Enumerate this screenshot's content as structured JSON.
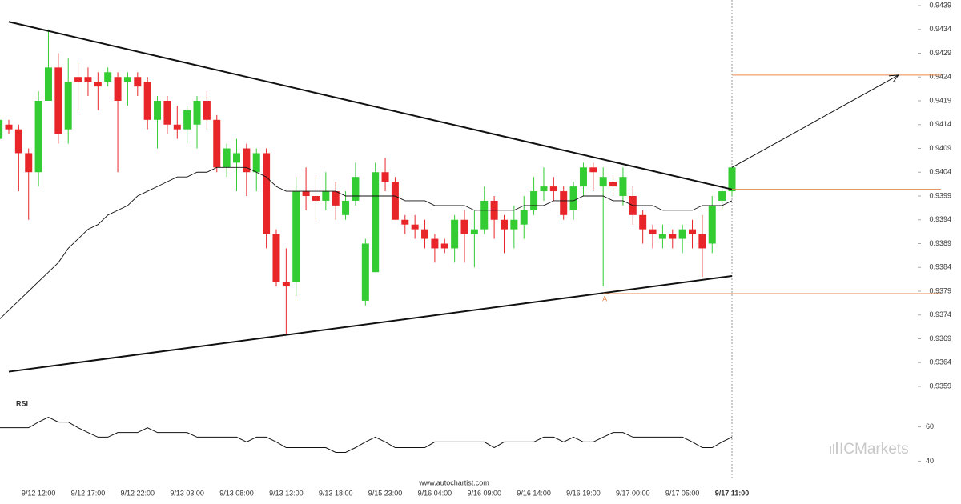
{
  "chart_data": {
    "type": "candlestick",
    "categories": [
      null,
      null,
      null,
      null,
      "9/12 12:00",
      null,
      null,
      null,
      null,
      "9/12 17:00",
      null,
      null,
      null,
      null,
      "9/12 22:00",
      null,
      null,
      null,
      null,
      "9/13 03:00",
      null,
      null,
      null,
      null,
      "9/13 08:00",
      null,
      null,
      null,
      null,
      "9/13 13:00",
      null,
      null,
      null,
      null,
      "9/13 18:00",
      null,
      null,
      null,
      null,
      "9/15 23:00",
      null,
      null,
      null,
      null,
      "9/16 04:00",
      null,
      null,
      null,
      null,
      "9/16 09:00",
      null,
      null,
      null,
      null,
      "9/16 14:00",
      null,
      null,
      null,
      null,
      "9/16 19:00",
      null,
      null,
      null,
      null,
      "9/17 00:00",
      null,
      null,
      null,
      null,
      "9/17 05:00",
      null,
      null,
      null,
      null,
      "9/17 11:00"
    ],
    "open": [
      0.9411,
      0.9414,
      0.9413,
      0.9408,
      0.9404,
      0.9419,
      0.9426,
      0.9413,
      0.9424,
      0.9424,
      0.9423,
      0.9423,
      0.9424,
      0.9423,
      0.9424,
      0.9423,
      0.9415,
      0.9419,
      0.9414,
      0.9413,
      0.9414,
      0.9419,
      0.9415,
      0.9405,
      0.9406,
      0.9409,
      0.9404,
      0.9408,
      0.9391,
      0.9381,
      0.9381,
      0.94,
      0.9399,
      0.9398,
      0.94,
      0.9395,
      0.9398,
      0.9377,
      0.9383,
      0.9404,
      0.9402,
      0.9394,
      0.9393,
      0.9392,
      0.939,
      0.9389,
      0.9388,
      0.9394,
      0.9391,
      0.9392,
      0.9398,
      0.9394,
      0.9392,
      0.9393,
      0.9396,
      0.94,
      0.9401,
      0.94,
      0.9396,
      0.9401,
      0.9405,
      0.9401,
      0.9402,
      0.9399,
      0.9399,
      0.9395,
      0.9392,
      0.939,
      0.9391,
      0.939,
      0.9392,
      0.9391,
      0.9389,
      0.9398,
      0.94
    ],
    "high": [
      0.9415,
      0.9415,
      0.9414,
      0.9409,
      0.9421,
      0.9434,
      0.9429,
      0.9428,
      0.9427,
      0.9426,
      0.9425,
      0.9426,
      0.9425,
      0.9425,
      0.9425,
      0.9424,
      0.942,
      0.942,
      0.9418,
      0.9418,
      0.942,
      0.9421,
      0.9416,
      0.941,
      0.9411,
      0.941,
      0.9409,
      0.9409,
      0.9392,
      0.9388,
      0.9403,
      0.9405,
      0.9403,
      0.9404,
      0.9402,
      0.94,
      0.9406,
      0.939,
      0.9406,
      0.9407,
      0.9403,
      0.9395,
      0.9395,
      0.9394,
      0.9391,
      0.939,
      0.9395,
      0.9396,
      0.9396,
      0.9401,
      0.9399,
      0.9395,
      0.9397,
      0.9399,
      0.9403,
      0.9405,
      0.9403,
      0.9401,
      0.9402,
      0.9406,
      0.9406,
      0.9405,
      0.9403,
      0.9405,
      0.9401,
      0.9396,
      0.9393,
      0.9393,
      0.9392,
      0.9393,
      0.9394,
      0.9395,
      0.9399,
      0.9401,
      0.9405
    ],
    "low": [
      0.9411,
      0.9412,
      0.94,
      0.9394,
      0.9401,
      0.9419,
      0.941,
      0.941,
      0.9417,
      0.942,
      0.9417,
      0.9422,
      0.9404,
      0.9418,
      0.942,
      0.9413,
      0.9409,
      0.9412,
      0.9411,
      0.941,
      0.9409,
      0.9413,
      0.9404,
      0.9403,
      0.94,
      0.9399,
      0.94,
      0.9388,
      0.938,
      0.937,
      0.9378,
      0.9396,
      0.9394,
      0.9396,
      0.9394,
      0.9394,
      0.9397,
      0.9376,
      0.9383,
      0.94,
      0.9394,
      0.9391,
      0.939,
      0.9388,
      0.9385,
      0.9387,
      0.9385,
      0.9385,
      0.9384,
      0.9391,
      0.939,
      0.9387,
      0.9388,
      0.939,
      0.9395,
      0.9398,
      0.9398,
      0.9394,
      0.9394,
      0.9399,
      0.94,
      0.938,
      0.9399,
      0.9397,
      0.9393,
      0.9389,
      0.9388,
      0.9388,
      0.9388,
      0.9387,
      0.9388,
      0.9382,
      0.9387,
      0.9396,
      0.9399
    ],
    "close": [
      0.9415,
      0.9413,
      0.9408,
      0.9404,
      0.9419,
      0.9426,
      0.9412,
      0.9423,
      0.9423,
      0.9423,
      0.9422,
      0.9425,
      0.9419,
      0.9424,
      0.9422,
      0.9415,
      0.9419,
      0.9414,
      0.9413,
      0.9417,
      0.9419,
      0.9415,
      0.9405,
      0.9409,
      0.9408,
      0.9404,
      0.9408,
      0.9391,
      0.9381,
      0.938,
      0.94,
      0.9399,
      0.9398,
      0.94,
      0.9397,
      0.9398,
      0.9403,
      0.9389,
      0.9404,
      0.9402,
      0.9394,
      0.9393,
      0.9392,
      0.939,
      0.9388,
      0.9388,
      0.9394,
      0.9391,
      0.9392,
      0.9398,
      0.9394,
      0.9392,
      0.9394,
      0.9396,
      0.94,
      0.9401,
      0.94,
      0.9395,
      0.9401,
      0.9405,
      0.9404,
      0.9403,
      0.9401,
      0.9403,
      0.9395,
      0.9392,
      0.9391,
      0.9391,
      0.939,
      0.9392,
      0.9391,
      0.9388,
      0.9397,
      0.94,
      0.9405
    ],
    "up_color": "#33cc33",
    "down_color": "#e8262a",
    "moving_average": [
      0.9373,
      0.9375,
      0.9377,
      0.9379,
      0.9381,
      0.9383,
      0.9385,
      0.9388,
      0.939,
      0.9392,
      0.9393,
      0.9395,
      0.9396,
      0.9397,
      0.9399,
      0.94,
      0.9401,
      0.9402,
      0.9403,
      0.9403,
      0.9404,
      0.9404,
      0.9405,
      0.9405,
      0.9405,
      0.9405,
      0.9404,
      0.9403,
      0.9401,
      0.94,
      0.94,
      0.94,
      0.94,
      0.94,
      0.94,
      0.9399,
      0.9399,
      0.9399,
      0.9399,
      0.9399,
      0.9399,
      0.9398,
      0.9398,
      0.9398,
      0.9397,
      0.9397,
      0.9397,
      0.9397,
      0.9396,
      0.9396,
      0.9396,
      0.9396,
      0.9396,
      0.9397,
      0.9397,
      0.9397,
      0.9398,
      0.9398,
      0.9398,
      0.9399,
      0.9399,
      0.9399,
      0.9398,
      0.9398,
      0.9397,
      0.9397,
      0.9397,
      0.9396,
      0.9396,
      0.9396,
      0.9396,
      0.9397,
      0.9397,
      0.9397,
      0.9398
    ],
    "trendlines": [
      {
        "start_index": 1,
        "start": 0.94356,
        "end_index": 74,
        "end": 0.94004
      },
      {
        "start_index": 1,
        "start": 0.93621,
        "end_index": 74,
        "end": 0.93822
      }
    ],
    "levels": [
      {
        "value": 0.94244,
        "start_index": 74
      },
      {
        "value": 0.94004,
        "start_index": 74
      },
      {
        "value": 0.93785,
        "start_index": 61,
        "label": "A"
      }
    ],
    "level_color": "#e58a4c",
    "ylim": [
      0.9359,
      0.9439
    ],
    "yticks": [
      0.9439,
      0.9434,
      0.9429,
      0.9424,
      0.9419,
      0.9414,
      0.9409,
      0.9404,
      0.9399,
      0.9394,
      0.9389,
      0.9384,
      0.9379,
      0.9374,
      0.9369,
      0.9364,
      0.9359
    ],
    "rsi": {
      "title": "RSI",
      "ylim": [
        29,
        78
      ],
      "yticks": [
        60,
        40
      ],
      "values": [
        59.5,
        59.5,
        59.5,
        59.5,
        62.8,
        65.6,
        62.8,
        62.8,
        59.5,
        56.7,
        54,
        54,
        56.7,
        56.7,
        56.7,
        59.5,
        56.7,
        56.7,
        56.7,
        56.7,
        54,
        54,
        54,
        54,
        54,
        51.2,
        54,
        54,
        51.2,
        47.9,
        47.9,
        47.9,
        47.9,
        47.9,
        45.1,
        45.1,
        47.9,
        51.2,
        54,
        51.2,
        47.9,
        47.9,
        47.9,
        47.9,
        51.2,
        51.2,
        51.2,
        51.2,
        51.2,
        51.2,
        47.9,
        51.2,
        51.2,
        51.2,
        51.2,
        54,
        54,
        51.2,
        54,
        51.2,
        51.2,
        54,
        56.7,
        56.7,
        54,
        54,
        54,
        54,
        54,
        54,
        51.2,
        47.9,
        47.9,
        51.2,
        54
      ]
    },
    "source": "www.autochartist.com",
    "watermark": "ICMarkets"
  }
}
